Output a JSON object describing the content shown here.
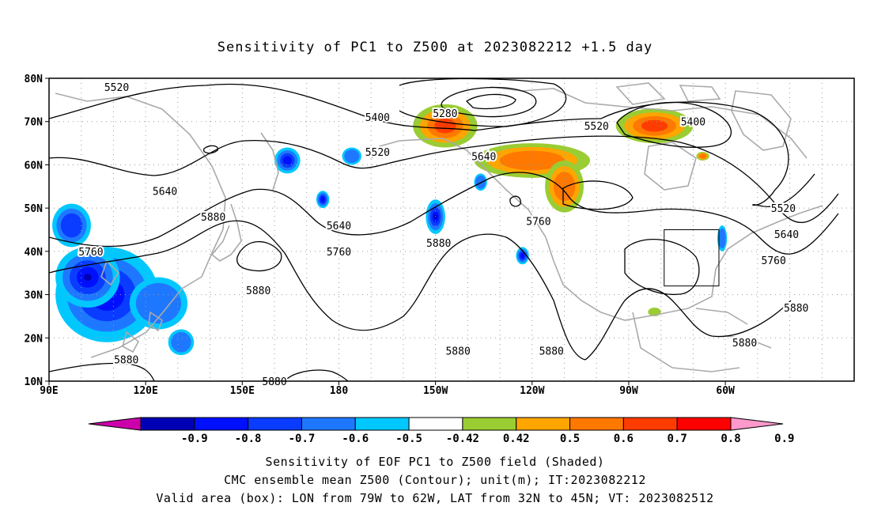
{
  "title": "Sensitivity of PC1 to Z500 at 2023082212 +1.5 day",
  "lat_labels": [
    "80N",
    "70N",
    "60N",
    "50N",
    "40N",
    "30N",
    "20N",
    "10N"
  ],
  "lon_labels": [
    "90E",
    "120E",
    "150E",
    "180",
    "150W",
    "120W",
    "90W",
    "60W"
  ],
  "contour_labels": [
    {
      "text": "5520",
      "lon": 111,
      "lat": 78
    },
    {
      "text": "5400",
      "lon": 192,
      "lat": 71
    },
    {
      "text": "5280",
      "lon": 213,
      "lat": 72
    },
    {
      "text": "5520",
      "lon": 192,
      "lat": 63
    },
    {
      "text": "5520",
      "lon": 260,
      "lat": 69
    },
    {
      "text": "5400",
      "lon": 290,
      "lat": 70
    },
    {
      "text": "5640",
      "lon": 225,
      "lat": 62
    },
    {
      "text": "5640",
      "lon": 126,
      "lat": 54
    },
    {
      "text": "5880",
      "lon": 141,
      "lat": 48
    },
    {
      "text": "5640",
      "lon": 180,
      "lat": 46
    },
    {
      "text": "5880",
      "lon": 211,
      "lat": 42
    },
    {
      "text": "5760",
      "lon": 242,
      "lat": 47
    },
    {
      "text": "5520",
      "lon": 318,
      "lat": 50
    },
    {
      "text": "5640",
      "lon": 319,
      "lat": 44
    },
    {
      "text": "5760",
      "lon": 103,
      "lat": 40
    },
    {
      "text": "5760",
      "lon": 180,
      "lat": 40
    },
    {
      "text": "5760",
      "lon": 315,
      "lat": 38
    },
    {
      "text": "5880",
      "lon": 155,
      "lat": 31
    },
    {
      "text": "5880",
      "lon": 322,
      "lat": 27
    },
    {
      "text": "5880",
      "lon": 217,
      "lat": 17
    },
    {
      "text": "5880",
      "lon": 246,
      "lat": 17
    },
    {
      "text": "5880",
      "lon": 306,
      "lat": 19
    },
    {
      "text": "5880",
      "lon": 114,
      "lat": 15
    },
    {
      "text": "5880",
      "lon": 160,
      "lat": 10
    }
  ],
  "colorbar": {
    "colors": [
      "#cc00aa",
      "#0000b4",
      "#0010ff",
      "#0a3cff",
      "#1e78ff",
      "#00c8ff",
      "#ffffff",
      "#9acd32",
      "#ffa500",
      "#ff7800",
      "#ff3c00",
      "#ff0000",
      "#ff99cc"
    ],
    "labels": [
      "-0.9",
      "-0.8",
      "-0.7",
      "-0.6",
      "-0.5",
      "-0.42",
      "0.42",
      "0.5",
      "0.6",
      "0.7",
      "0.8",
      "0.9"
    ]
  },
  "valid_box": {
    "lon_w": 281,
    "lon_e": 298,
    "lat_s": 32,
    "lat_n": 45
  },
  "shading": [
    {
      "sign": "neg",
      "lon": 108,
      "lat": 30,
      "rx": 16,
      "ry": 11,
      "level": 3
    },
    {
      "sign": "neg",
      "lon": 102,
      "lat": 34,
      "rx": 10,
      "ry": 7,
      "level": 4
    },
    {
      "sign": "neg",
      "lon": 97,
      "lat": 46,
      "rx": 6,
      "ry": 5,
      "level": 2
    },
    {
      "sign": "neg",
      "lon": 124,
      "lat": 28,
      "rx": 9,
      "ry": 6,
      "level": 1
    },
    {
      "sign": "neg",
      "lon": 131,
      "lat": 19,
      "rx": 4,
      "ry": 3,
      "level": 1
    },
    {
      "sign": "neg",
      "lon": 164,
      "lat": 61,
      "rx": 4,
      "ry": 3,
      "level": 3
    },
    {
      "sign": "neg",
      "lon": 175,
      "lat": 52,
      "rx": 2,
      "ry": 2,
      "level": 3
    },
    {
      "sign": "neg",
      "lon": 184,
      "lat": 62,
      "rx": 3,
      "ry": 2,
      "level": 1
    },
    {
      "sign": "neg",
      "lon": 210,
      "lat": 48,
      "rx": 3,
      "ry": 4,
      "level": 4
    },
    {
      "sign": "neg",
      "lon": 224,
      "lat": 56,
      "rx": 2,
      "ry": 2,
      "level": 1
    },
    {
      "sign": "neg",
      "lon": 237,
      "lat": 39,
      "rx": 2,
      "ry": 2,
      "level": 3
    },
    {
      "sign": "neg",
      "lon": 299,
      "lat": 43,
      "rx": 1.5,
      "ry": 3,
      "level": 1
    },
    {
      "sign": "pos",
      "lon": 213,
      "lat": 69,
      "rx": 10,
      "ry": 5,
      "level": 3
    },
    {
      "sign": "pos",
      "lon": 240,
      "lat": 61,
      "rx": 18,
      "ry": 4,
      "level": 2
    },
    {
      "sign": "pos",
      "lon": 250,
      "lat": 55,
      "rx": 6,
      "ry": 6,
      "level": 2
    },
    {
      "sign": "pos",
      "lon": 278,
      "lat": 69,
      "rx": 12,
      "ry": 4,
      "level": 3
    },
    {
      "sign": "pos",
      "lon": 293,
      "lat": 62,
      "rx": 2,
      "ry": 1,
      "level": 2
    },
    {
      "sign": "pos",
      "lon": 278,
      "lat": 26,
      "rx": 2,
      "ry": 1,
      "level": 0
    }
  ]
}
